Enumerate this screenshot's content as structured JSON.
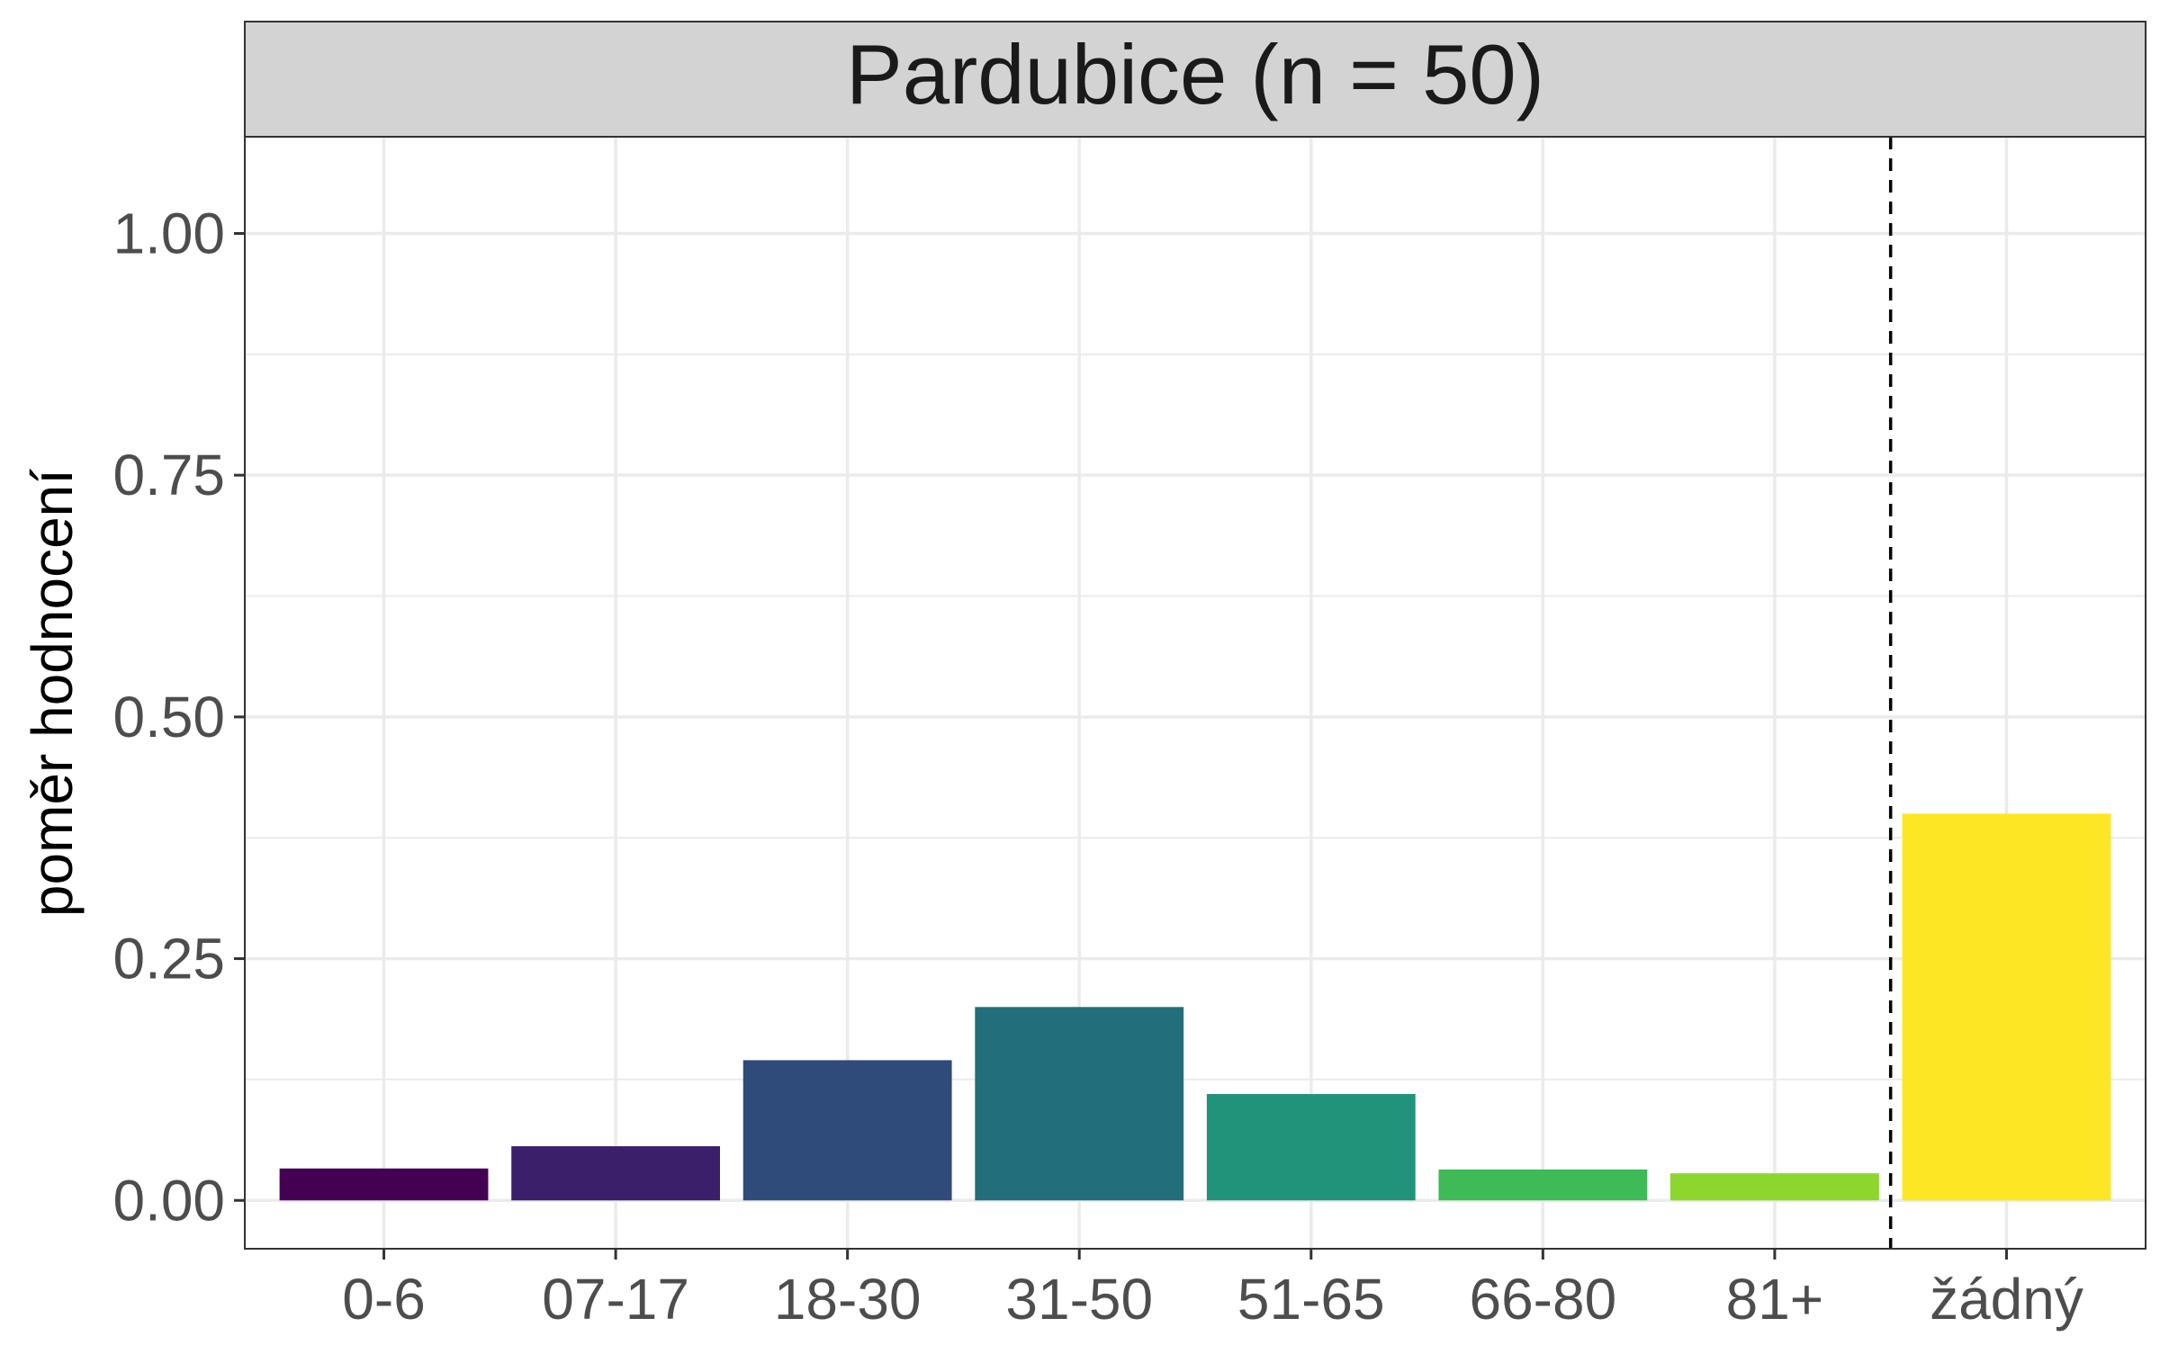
{
  "chart_data": {
    "type": "bar",
    "title": "Pardubice (n = 50)",
    "xlabel": "",
    "ylabel": "poměr hodnocení",
    "categories": [
      "0-6",
      "07-17",
      "18-30",
      "31-50",
      "51-65",
      "66-80",
      "81+",
      "žádný"
    ],
    "values": [
      0.033,
      0.056,
      0.145,
      0.2,
      0.11,
      0.032,
      0.028,
      0.4
    ],
    "colors": [
      "#440154",
      "#3B1F6B",
      "#2E4B7A",
      "#236E7B",
      "#21937A",
      "#3EBA57",
      "#8CD62E",
      "#FDE725"
    ],
    "ylim": [
      -0.05,
      1.1
    ],
    "yticks": [
      "0.00",
      "0.25",
      "0.50",
      "0.75",
      "1.00"
    ],
    "ytick_values": [
      0,
      0.25,
      0.5,
      0.75,
      1.0
    ],
    "grid": true,
    "legend": "none",
    "reference_line": {
      "between": [
        "81+",
        "žádný"
      ],
      "style": "dashed",
      "color": "#000000"
    },
    "panel_strip_color": "#D3D3D3",
    "grid_color": "#EBEBEB",
    "tick_label_color": "#4D4D4D"
  }
}
